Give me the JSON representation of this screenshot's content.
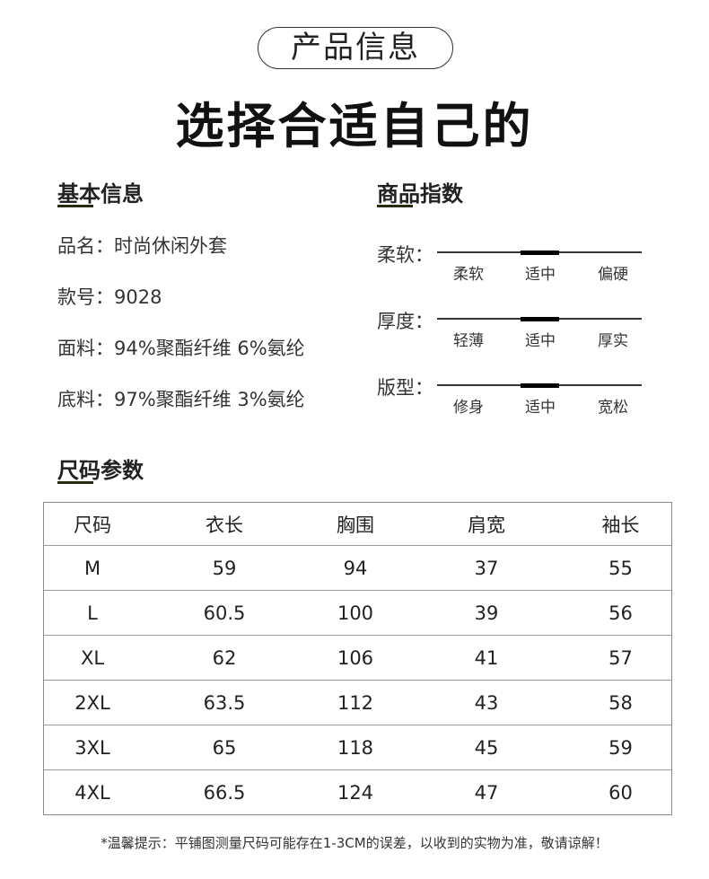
{
  "badge": "产品信息",
  "headline": "选择合适自己的",
  "basic": {
    "title": "基本信息",
    "items": [
      "品名：时尚休闲外套",
      "款号：9028",
      "面料：94%聚酯纤维 6%氨纶",
      "底料：97%聚酯纤维 3%氨纶"
    ]
  },
  "index": {
    "title": "商品指数",
    "rows": [
      {
        "label": "柔软：",
        "options": [
          "柔软",
          "适中",
          "偏硬"
        ],
        "selected": "适中"
      },
      {
        "label": "厚度：",
        "options": [
          "轻薄",
          "适中",
          "厚实"
        ],
        "selected": "适中"
      },
      {
        "label": "版型：",
        "options": [
          "修身",
          "适中",
          "宽松"
        ],
        "selected": "适中"
      }
    ]
  },
  "size": {
    "title": "尺码参数",
    "headers": [
      "尺码",
      "衣长",
      "胸围",
      "肩宽",
      "袖长"
    ],
    "rows": [
      [
        "M",
        "59",
        "94",
        "37",
        "55"
      ],
      [
        "L",
        "60.5",
        "100",
        "39",
        "56"
      ],
      [
        "XL",
        "62",
        "106",
        "41",
        "57"
      ],
      [
        "2XL",
        "63.5",
        "112",
        "43",
        "58"
      ],
      [
        "3XL",
        "65",
        "118",
        "45",
        "59"
      ],
      [
        "4XL",
        "66.5",
        "124",
        "47",
        "60"
      ]
    ]
  },
  "note": "*温馨提示：平铺图测量尺码可能存在1-3CM的误差，以收到的实物为准，敬请谅解！"
}
